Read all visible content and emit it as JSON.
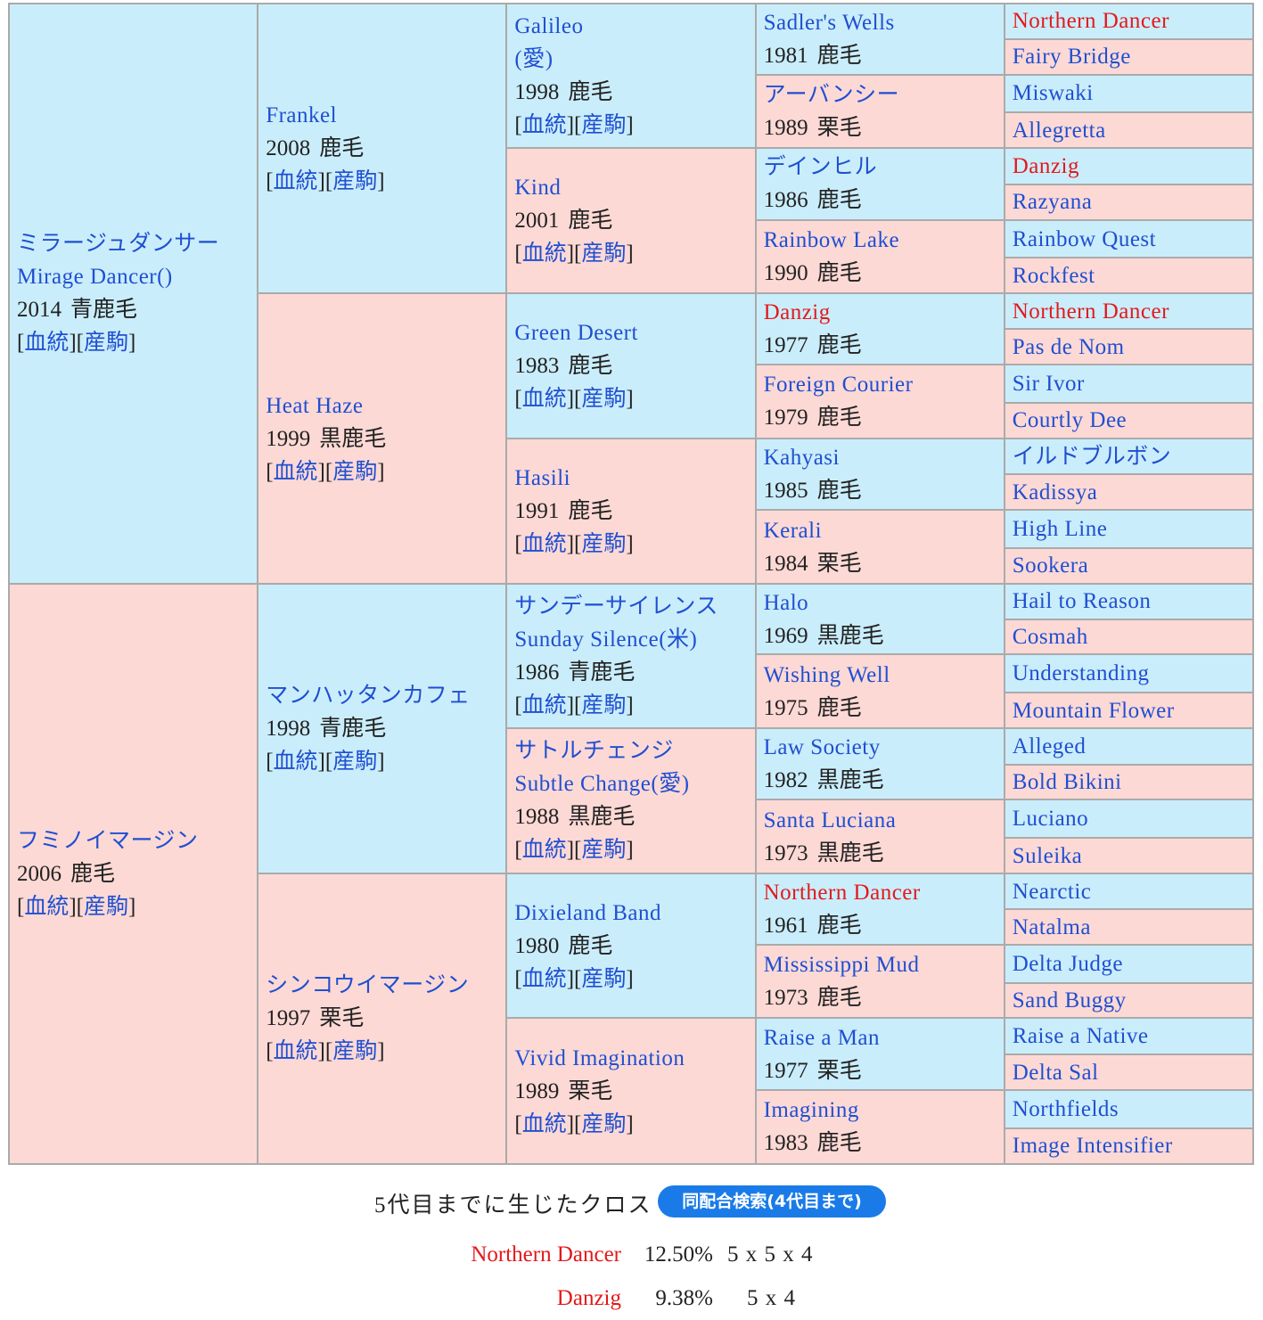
{
  "link_format": {
    "open": "[",
    "close": "]"
  },
  "link_labels": [
    "血統",
    "産駒"
  ],
  "pedigree": {
    "sire": {
      "name": [
        "ミラージュダンサー",
        "Mirage Dancer()"
      ],
      "year": 2014,
      "coat": "青鹿毛",
      "sire": {
        "name": [
          "Frankel"
        ],
        "year": 2008,
        "coat": "鹿毛",
        "sire": {
          "name": [
            "Galileo",
            "(愛)"
          ],
          "year": 1998,
          "coat": "鹿毛",
          "sire": {
            "name": "Sadler's Wells",
            "year": 1981,
            "coat": "鹿毛",
            "sire": {
              "name": "Northern Dancer",
              "cross": true
            },
            "dam": {
              "name": "Fairy Bridge"
            }
          },
          "dam": {
            "name": "アーバンシー",
            "year": 1989,
            "coat": "栗毛",
            "sire": {
              "name": "Miswaki"
            },
            "dam": {
              "name": "Allegretta"
            }
          }
        },
        "dam": {
          "name": [
            "Kind"
          ],
          "year": 2001,
          "coat": "鹿毛",
          "sire": {
            "name": "デインヒル",
            "year": 1986,
            "coat": "鹿毛",
            "sire": {
              "name": "Danzig",
              "cross": true
            },
            "dam": {
              "name": "Razyana"
            }
          },
          "dam": {
            "name": "Rainbow Lake",
            "year": 1990,
            "coat": "鹿毛",
            "sire": {
              "name": "Rainbow Quest"
            },
            "dam": {
              "name": "Rockfest"
            }
          }
        }
      },
      "dam": {
        "name": [
          "Heat Haze"
        ],
        "year": 1999,
        "coat": "黒鹿毛",
        "sire": {
          "name": [
            "Green Desert"
          ],
          "year": 1983,
          "coat": "鹿毛",
          "sire": {
            "name": "Danzig",
            "cross": true,
            "year": 1977,
            "coat": "鹿毛",
            "sire": {
              "name": "Northern Dancer",
              "cross": true
            },
            "dam": {
              "name": "Pas de Nom"
            }
          },
          "dam": {
            "name": "Foreign Courier",
            "year": 1979,
            "coat": "鹿毛",
            "sire": {
              "name": "Sir Ivor"
            },
            "dam": {
              "name": "Courtly Dee"
            }
          }
        },
        "dam": {
          "name": [
            "Hasili"
          ],
          "year": 1991,
          "coat": "鹿毛",
          "sire": {
            "name": "Kahyasi",
            "year": 1985,
            "coat": "鹿毛",
            "sire": {
              "name": "イルドブルボン"
            },
            "dam": {
              "name": "Kadissya"
            }
          },
          "dam": {
            "name": "Kerali",
            "year": 1984,
            "coat": "栗毛",
            "sire": {
              "name": "High Line"
            },
            "dam": {
              "name": "Sookera"
            }
          }
        }
      }
    },
    "dam": {
      "name": [
        "フミノイマージン"
      ],
      "year": 2006,
      "coat": "鹿毛",
      "sire": {
        "name": [
          "マンハッタンカフェ"
        ],
        "year": 1998,
        "coat": "青鹿毛",
        "sire": {
          "name": [
            "サンデーサイレンス",
            "Sunday Silence(米)"
          ],
          "year": 1986,
          "coat": "青鹿毛",
          "sire": {
            "name": "Halo",
            "year": 1969,
            "coat": "黒鹿毛",
            "sire": {
              "name": "Hail to Reason"
            },
            "dam": {
              "name": "Cosmah"
            }
          },
          "dam": {
            "name": "Wishing Well",
            "year": 1975,
            "coat": "鹿毛",
            "sire": {
              "name": "Understanding"
            },
            "dam": {
              "name": "Mountain Flower"
            }
          }
        },
        "dam": {
          "name": [
            "サトルチェンジ",
            "Subtle Change(愛)"
          ],
          "year": 1988,
          "coat": "黒鹿毛",
          "sire": {
            "name": "Law Society",
            "year": 1982,
            "coat": "黒鹿毛",
            "sire": {
              "name": "Alleged"
            },
            "dam": {
              "name": "Bold Bikini"
            }
          },
          "dam": {
            "name": "Santa Luciana",
            "year": 1973,
            "coat": "黒鹿毛",
            "sire": {
              "name": "Luciano"
            },
            "dam": {
              "name": "Suleika"
            }
          }
        }
      },
      "dam": {
        "name": [
          "シンコウイマージン"
        ],
        "year": 1997,
        "coat": "栗毛",
        "sire": {
          "name": [
            "Dixieland Band"
          ],
          "year": 1980,
          "coat": "鹿毛",
          "sire": {
            "name": "Northern Dancer",
            "cross": true,
            "year": 1961,
            "coat": "鹿毛",
            "sire": {
              "name": "Nearctic"
            },
            "dam": {
              "name": "Natalma"
            }
          },
          "dam": {
            "name": "Mississippi Mud",
            "year": 1973,
            "coat": "鹿毛",
            "sire": {
              "name": "Delta Judge"
            },
            "dam": {
              "name": "Sand Buggy"
            }
          }
        },
        "dam": {
          "name": [
            "Vivid Imagination"
          ],
          "year": 1989,
          "coat": "栗毛",
          "sire": {
            "name": "Raise a Man",
            "year": 1977,
            "coat": "栗毛",
            "sire": {
              "name": "Raise a Native"
            },
            "dam": {
              "name": "Delta Sal"
            }
          },
          "dam": {
            "name": "Imagining",
            "year": 1983,
            "coat": "鹿毛",
            "sire": {
              "name": "Northfields"
            },
            "dam": {
              "name": "Image Intensifier"
            }
          }
        }
      }
    }
  },
  "cross_section": {
    "title": "5代目までに生じたクロス",
    "search_button": "同配合検索(4代目まで)",
    "crosses": [
      {
        "name": "Northern Dancer",
        "percent": "12.50%",
        "pattern": "5 x 5 x 4"
      },
      {
        "name": "Danzig",
        "percent": "9.38%",
        "pattern": "5 x 4"
      }
    ]
  }
}
